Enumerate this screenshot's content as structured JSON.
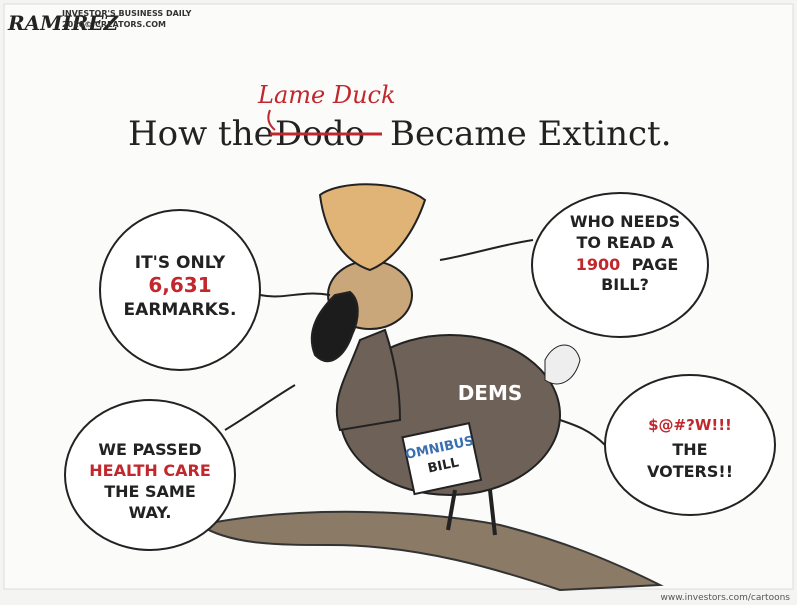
{
  "header": {
    "signature": "RAMIREZ",
    "publisher": "INVESTOR'S BUSINESS DAILY",
    "copyright": "2010© CREATORS.COM"
  },
  "title": {
    "correction": "Lame Duck",
    "prefix": "How the",
    "struck": "Dodo",
    "suffix": "Became Extinct."
  },
  "bubbles": [
    {
      "lines": [
        "IT'S ONLY",
        "6,631",
        "EARMARKS."
      ]
    },
    {
      "lines": [
        "WHO NEEDS",
        "TO READ A",
        "1900",
        "PAGE",
        "BILL?"
      ]
    },
    {
      "lines": [
        "WE PASSED",
        "HEALTH CARE",
        "THE SAME",
        "WAY."
      ]
    },
    {
      "lines": [
        "$@#?W!!!",
        "THE",
        "VOTERS!!"
      ]
    }
  ],
  "labels": {
    "body": "DEMS",
    "sign_line1": "OMNIBUS",
    "sign_line2": "BILL"
  },
  "footer": "www.investors.com/cartoons"
}
